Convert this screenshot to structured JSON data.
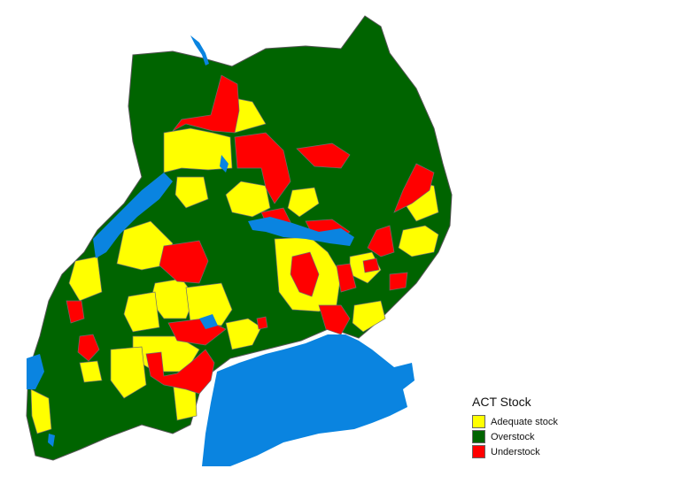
{
  "legend": {
    "title": "ACT Stock",
    "items": [
      {
        "label": "Adequate stock",
        "color": "#ffff00"
      },
      {
        "label": "Overstock",
        "color": "#006400"
      },
      {
        "label": "Understock",
        "color": "#ff0000"
      }
    ]
  },
  "colors": {
    "adequate": "#ffff00",
    "overstock": "#006400",
    "understock": "#ff0000",
    "water": "#0a84e0",
    "border": "#6e6e6e"
  }
}
